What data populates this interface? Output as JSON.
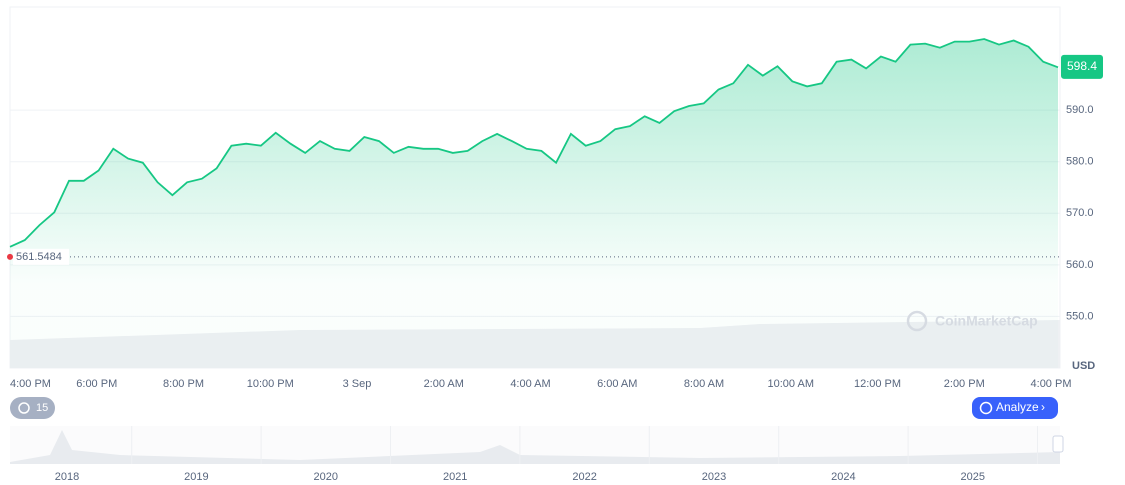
{
  "chart_data": {
    "type": "line",
    "xticks": [
      "4:00 PM",
      "6:00 PM",
      "8:00 PM",
      "10:00 PM",
      "3 Sep",
      "2:00 AM",
      "4:00 AM",
      "6:00 AM",
      "8:00 AM",
      "10:00 AM",
      "12:00 PM",
      "2:00 PM",
      "4:00 PM"
    ],
    "series": [
      {
        "color": "#16c784",
        "values": [
          563.5,
          564.8,
          567.7,
          570.2,
          576.3,
          576.3,
          578.3,
          582.5,
          580.6,
          579.8,
          576,
          573.5,
          576,
          576.7,
          578.7,
          583.1,
          583.5,
          583.1,
          585.6,
          583.5,
          581.7,
          584,
          582.5,
          582.1,
          584.8,
          584,
          581.7,
          582.9,
          582.5,
          582.5,
          581.7,
          582.1,
          584,
          585.4,
          584,
          582.5,
          582.1,
          579.8,
          585.4,
          583.1,
          584,
          586.3,
          586.9,
          588.8,
          587.5,
          589.8,
          590.8,
          591.3,
          594,
          595.2,
          598.8,
          596.7,
          598.5,
          595.6,
          594.6,
          595.2,
          599.4,
          599.8,
          598.1,
          600.4,
          599.4,
          602.7,
          602.9,
          602.1,
          603.3,
          603.3,
          603.8,
          602.7,
          603.5,
          602.3,
          599.4,
          598.3
        ]
      }
    ],
    "ylim": [
      540,
      610
    ],
    "yticks": [
      {
        "value": 550,
        "label": "550.0"
      },
      {
        "value": 560,
        "label": "560.0"
      },
      {
        "value": 570,
        "label": "570.0"
      },
      {
        "value": 580,
        "label": "580.0"
      },
      {
        "value": 590,
        "label": "590.0"
      }
    ],
    "grid": true,
    "baseline": 561.5484,
    "last_price": 598.4,
    "currency": "USD",
    "watermark": "CoinMarketCap",
    "navigator_years": [
      "2018",
      "2019",
      "2020",
      "2021",
      "2022",
      "2023",
      "2024",
      "2025"
    ]
  },
  "controls": {
    "history_count": "15",
    "analyze": "Analyze"
  }
}
